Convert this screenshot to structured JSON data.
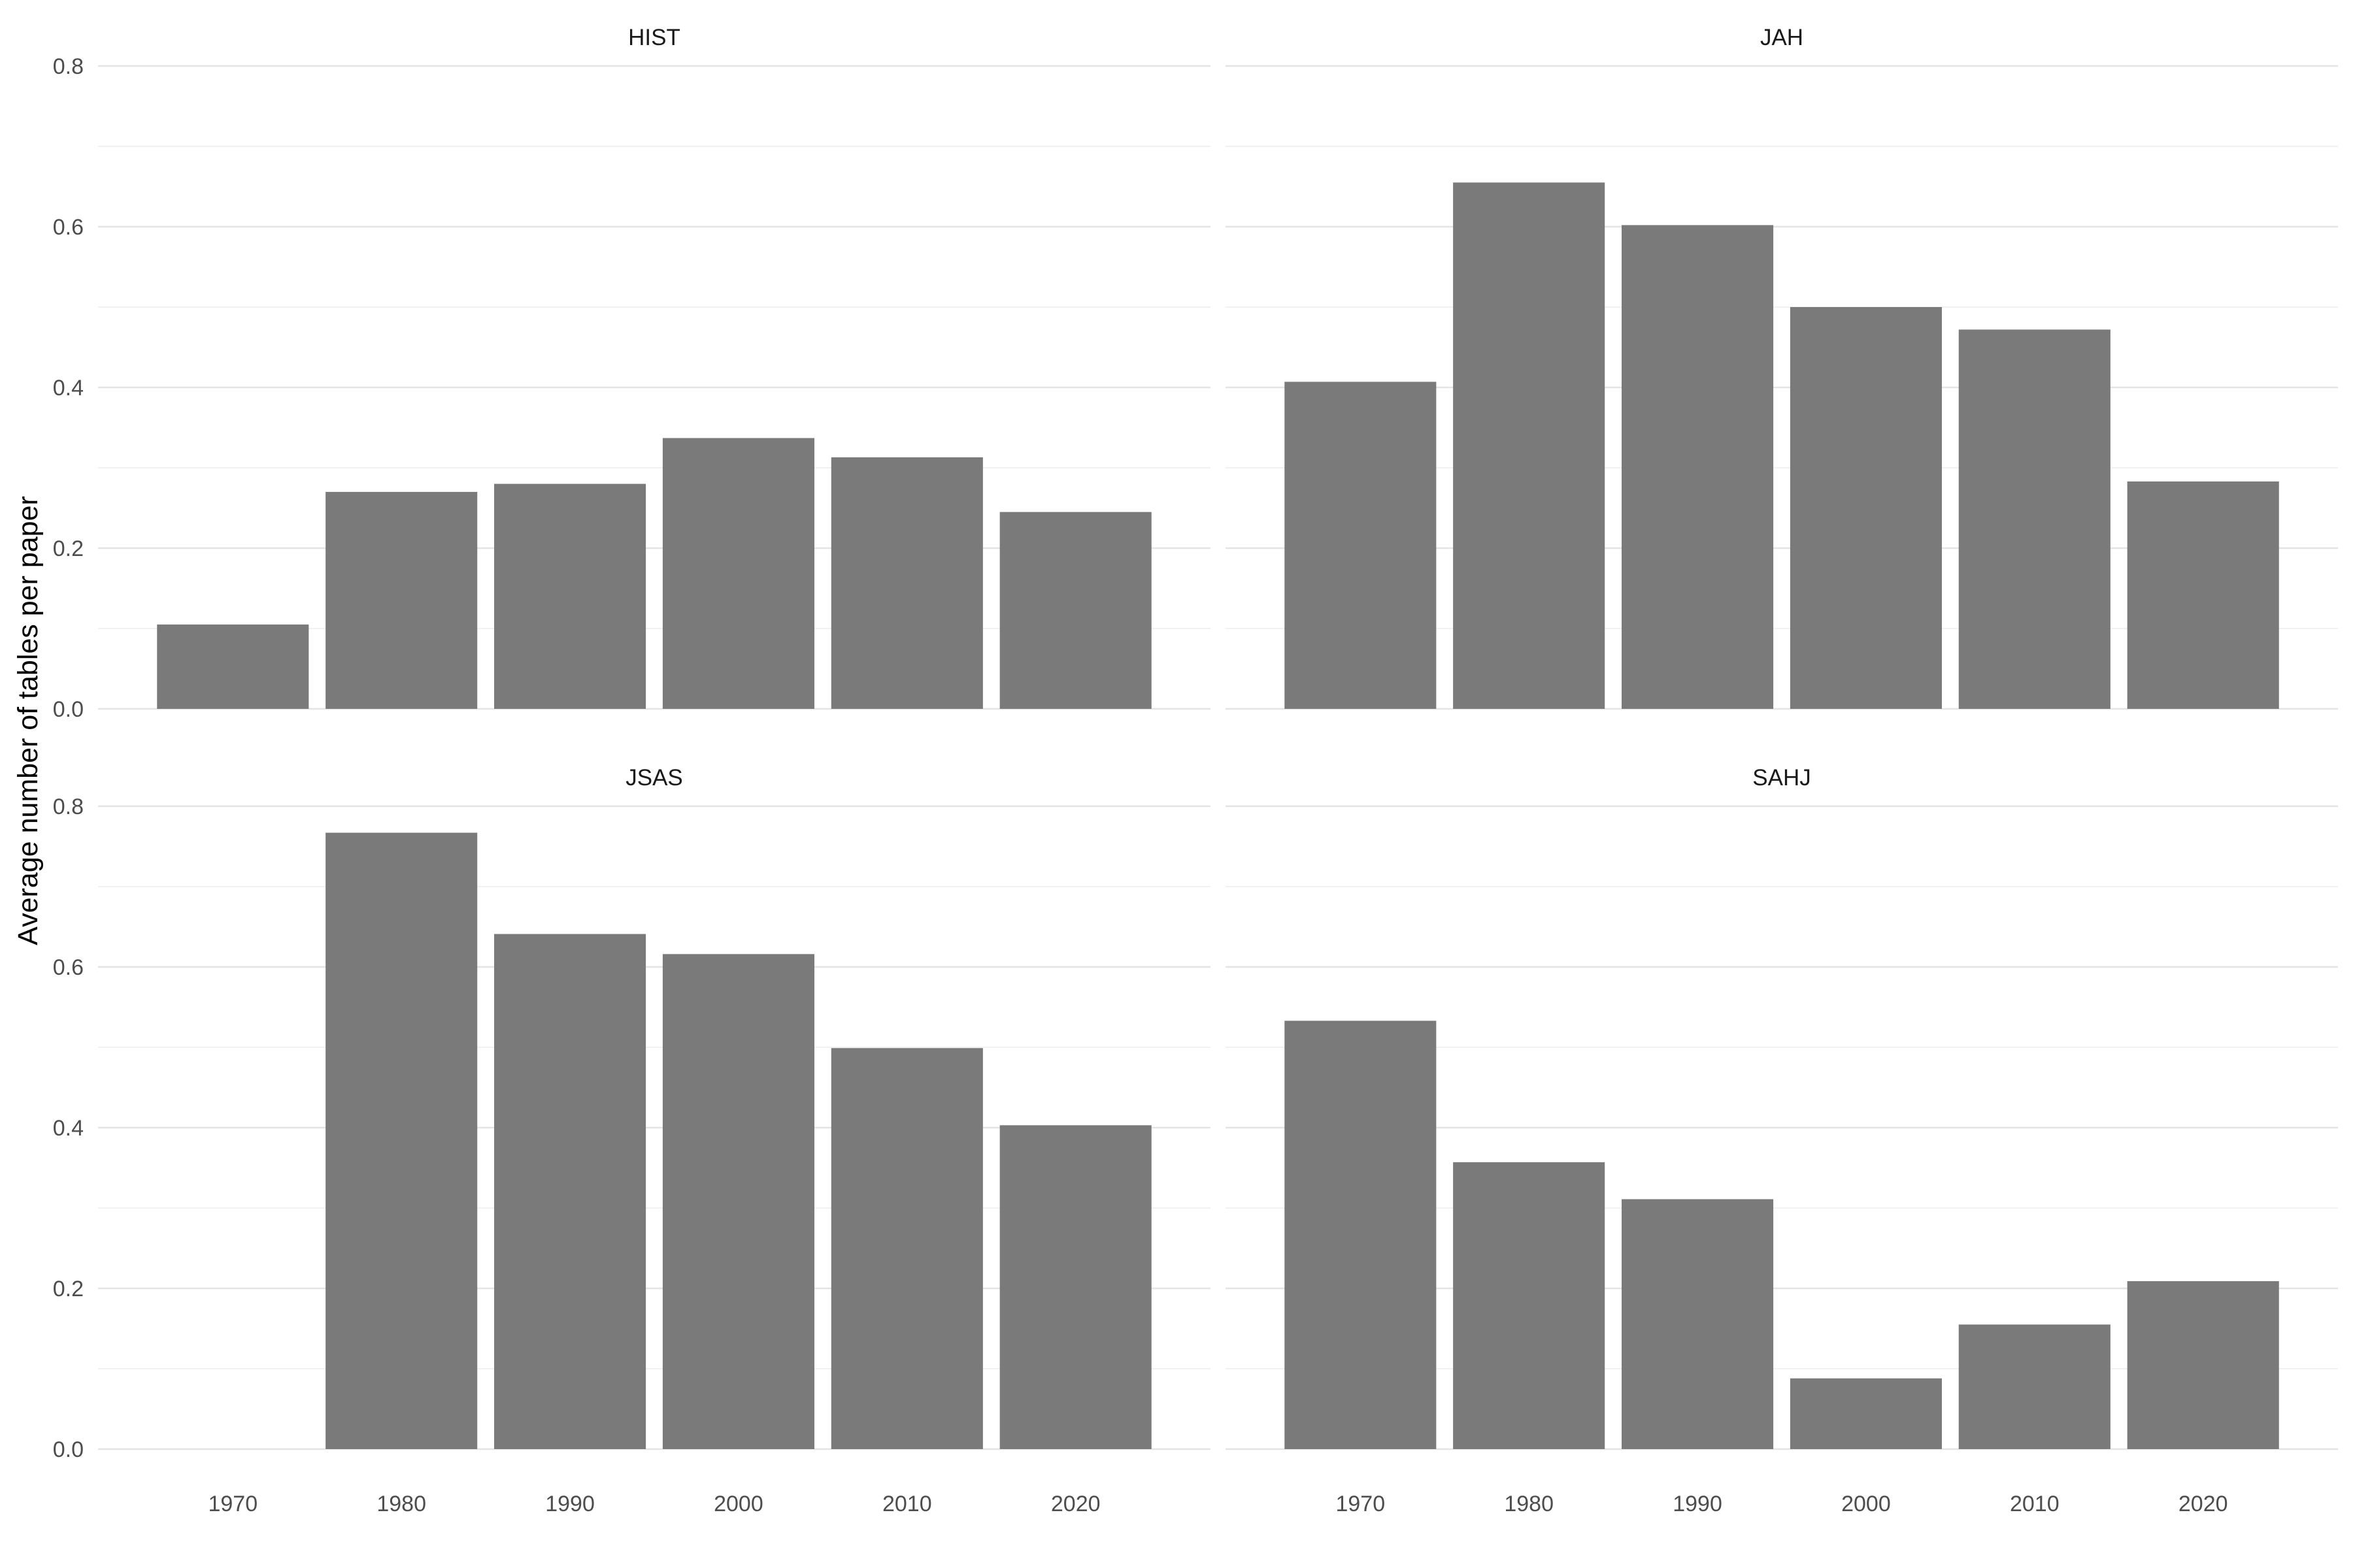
{
  "chart_data": {
    "type": "bar",
    "layout": "facet-grid 2x2",
    "ylabel": "Average number of tables per paper",
    "xlabel": "",
    "ylim": [
      0,
      0.8
    ],
    "y_ticks": [
      "0.0",
      "0.2",
      "0.4",
      "0.6",
      "0.8"
    ],
    "y_tick_values": [
      0,
      0.2,
      0.4,
      0.6,
      0.8
    ],
    "categories": [
      "1970",
      "1980",
      "1990",
      "2000",
      "2010",
      "2020"
    ],
    "grid": true,
    "bar_color": "#7a7a7a",
    "grid_major_color": "#e4e4e4",
    "grid_minor_color": "#f1f1f1",
    "panels": [
      {
        "name": "HIST",
        "values": [
          0.105,
          0.27,
          0.28,
          0.337,
          0.313,
          0.245
        ]
      },
      {
        "name": "JAH",
        "values": [
          0.407,
          0.655,
          0.602,
          0.5,
          0.472,
          0.283
        ]
      },
      {
        "name": "JSAS",
        "values": [
          0.0,
          0.767,
          0.641,
          0.616,
          0.499,
          0.403
        ]
      },
      {
        "name": "SAHJ",
        "values": [
          0.533,
          0.357,
          0.311,
          0.088,
          0.155,
          0.209
        ]
      }
    ]
  }
}
